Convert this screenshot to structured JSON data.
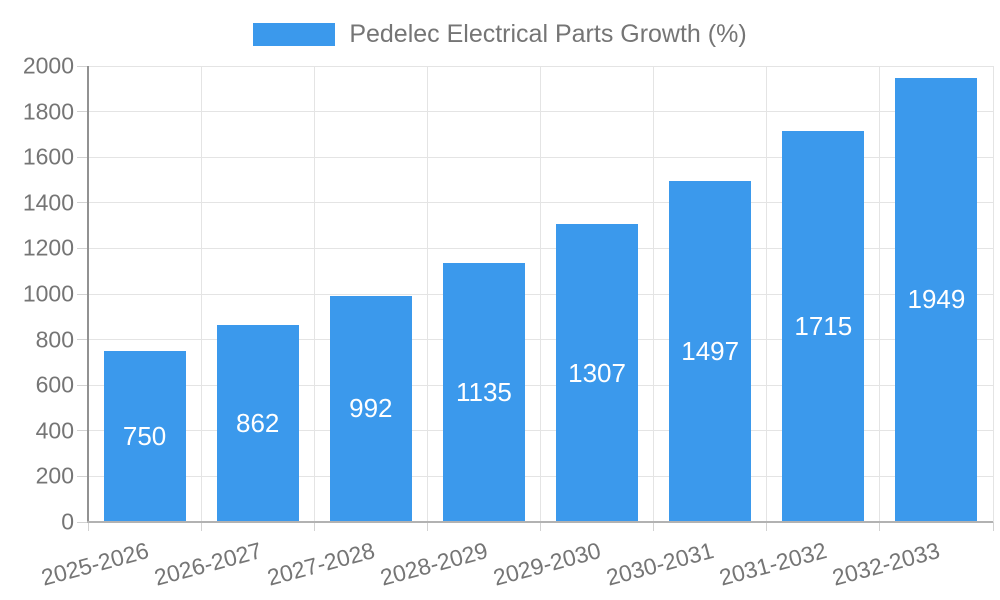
{
  "legend": {
    "label": "Pedelec Electrical Parts Growth (%)"
  },
  "chart_data": {
    "type": "bar",
    "title": "Pedelec Electrical Parts Growth (%)",
    "categories": [
      "2025-2026",
      "2026-2027",
      "2027-2028",
      "2028-2029",
      "2029-2030",
      "2030-2031",
      "2031-2032",
      "2032-2033"
    ],
    "values": [
      750,
      862,
      992,
      1135,
      1307,
      1497,
      1715,
      1949
    ],
    "xlabel": "",
    "ylabel": "",
    "ylim": [
      0,
      2000
    ],
    "yticks": [
      0,
      200,
      400,
      600,
      800,
      1000,
      1200,
      1400,
      1600,
      1800,
      2000
    ],
    "grid": true,
    "legend_position": "top-center",
    "bar_color": "#3b99ec",
    "value_label_color": "#ffffff",
    "axis_text_color": "#757575",
    "x_label_rotation_deg": -15
  }
}
